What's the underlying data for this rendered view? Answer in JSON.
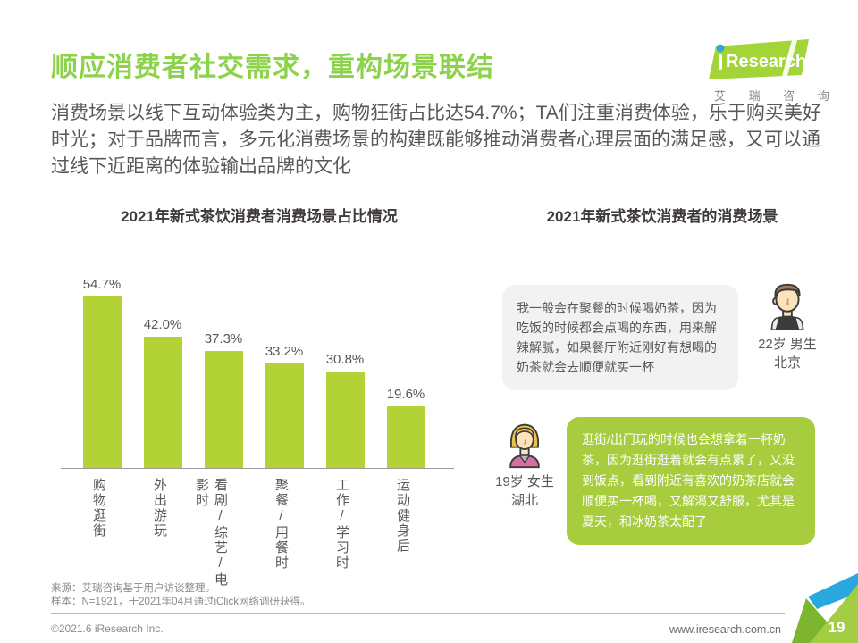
{
  "page": {
    "title": "顺应消费者社交需求，重构场景联结",
    "intro": "消费场景以线下互动体验类为主，购物狂街占比达54.7%；TA们注重消费体验，乐于购买美好时光；对于品牌而言，多元化消费场景的构建既能够推动消费者心理层面的满足感，又可以通过线下近距离的体验输出品牌的文化"
  },
  "logo": {
    "brand_i": "i",
    "brand": "Research",
    "subtitle": "艾 瑞 咨 询"
  },
  "chart_data": {
    "type": "bar",
    "title": "2021年新式茶饮消费者消费场景占比情况",
    "categories": [
      "购物逛街",
      "外出游玩",
      "看剧/综艺/电影时",
      "聚餐/用餐时",
      "工作/学习时",
      "运动健身后"
    ],
    "values": [
      54.7,
      42.0,
      37.3,
      33.2,
      30.8,
      19.6
    ],
    "value_labels": [
      "54.7%",
      "42.0%",
      "37.3%",
      "33.2%",
      "30.8%",
      "19.6%"
    ],
    "ylim": [
      0,
      60
    ],
    "bar_color": "#b2d235",
    "grid": false,
    "legend": "none",
    "xlabel": "",
    "ylabel": ""
  },
  "scenes": {
    "title": "2021年新式茶饮消费者的消费场景",
    "quotes": [
      {
        "text": "我一般会在聚餐的时候喝奶茶，因为吃饭的时候都会点喝的东西，用来解辣解腻，如果餐厅附近刚好有想喝的奶茶就会去顺便就买一杯",
        "persona_line1": "22岁 男生",
        "persona_line2": "北京",
        "avatar": "male-avatar-icon"
      },
      {
        "text": "逛街/出门玩的时候也会想拿着一杯奶茶，因为逛街逛着就会有点累了，又没到饭点，看到附近有喜欢的奶茶店就会顺便买一杯喝，又解渴又舒服，尤其是夏天，和冰奶茶太配了",
        "persona_line1": "19岁 女生",
        "persona_line2": "湖北",
        "avatar": "female-avatar-icon"
      }
    ]
  },
  "footer": {
    "source_line1": "来源：艾瑞咨询基于用户访谈整理。",
    "source_line2": "样本：N=1921，于2021年04月通过iClick网络调研获得。",
    "copyright": "©2021.6 iResearch Inc.",
    "website": "www.iresearch.com.cn",
    "page_number": "19"
  },
  "colors": {
    "title_green": "#8cd24a",
    "bar_green": "#b2d235",
    "bubble_green": "#a7cc3d",
    "bubble_gray": "#f2f2f2",
    "logo_green": "#a3d438",
    "blue_accent": "#29a8df",
    "text_dark": "#595757"
  }
}
